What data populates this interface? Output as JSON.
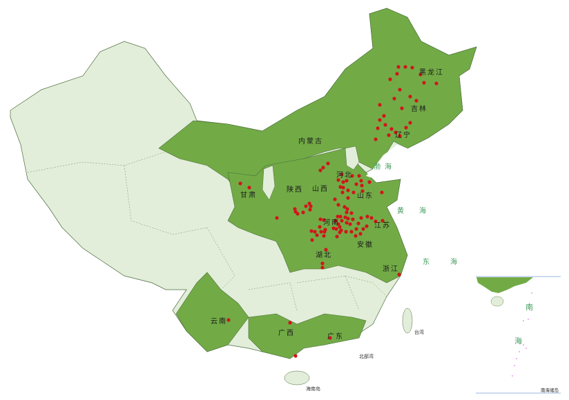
{
  "colors": {
    "highlighted_region": "#72ab46",
    "other_region": "#e2eed9",
    "border": "#4a6a3a",
    "marker": "#d0161a",
    "sea_label": "#3f9a5a"
  },
  "provinces_highlighted": [
    {
      "name": "黑龙江"
    },
    {
      "name": "吉林"
    },
    {
      "name": "辽宁"
    },
    {
      "name": "内蒙古"
    },
    {
      "name": "河北"
    },
    {
      "name": "山西"
    },
    {
      "name": "陕西"
    },
    {
      "name": "甘肃"
    },
    {
      "name": "山东"
    },
    {
      "name": "河南"
    },
    {
      "name": "江苏"
    },
    {
      "name": "安徽"
    },
    {
      "name": "湖北"
    },
    {
      "name": "浙江"
    },
    {
      "name": "云南"
    },
    {
      "name": "广西"
    },
    {
      "name": "广东"
    }
  ],
  "seas": {
    "bohai": "渤海",
    "huanghai": "黄海",
    "donghai": "东海",
    "beibuwan": "北部湾",
    "hainan": "海南岛",
    "taiwan": "台湾"
  },
  "inset": {
    "title": "南海诸岛",
    "sea_south": "南",
    "sea_hai": "海"
  },
  "marker_icon": "red-dot"
}
